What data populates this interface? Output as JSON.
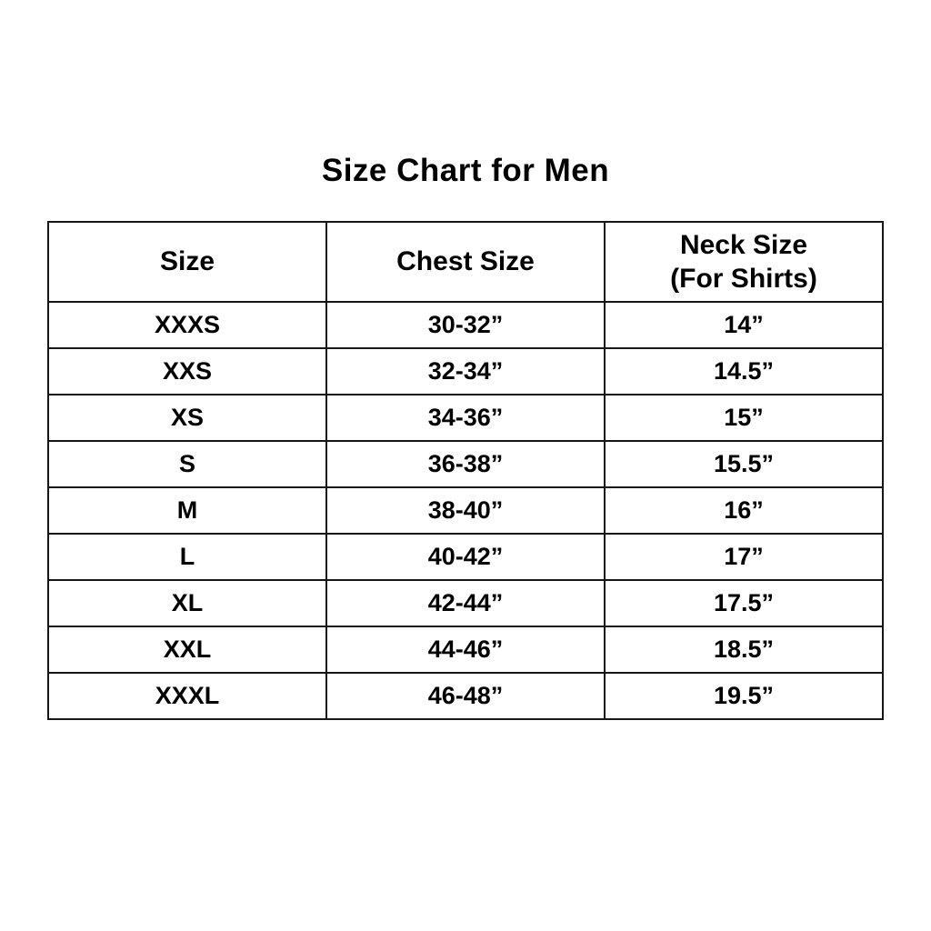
{
  "title": "Size Chart for Men",
  "chart_data": {
    "type": "table",
    "title": "Size Chart for Men",
    "columns": [
      {
        "label": "Size",
        "sublabel": ""
      },
      {
        "label": "Chest Size",
        "sublabel": ""
      },
      {
        "label": "Neck Size",
        "sublabel": "(For Shirts)"
      }
    ],
    "rows": [
      {
        "size": "XXXS",
        "chest": "30-32”",
        "neck": "14”"
      },
      {
        "size": "XXS",
        "chest": "32-34”",
        "neck": "14.5”"
      },
      {
        "size": "XS",
        "chest": "34-36”",
        "neck": "15”"
      },
      {
        "size": "S",
        "chest": "36-38”",
        "neck": "15.5”"
      },
      {
        "size": "M",
        "chest": "38-40”",
        "neck": "16”"
      },
      {
        "size": "L",
        "chest": "40-42”",
        "neck": "17”"
      },
      {
        "size": "XL",
        "chest": "42-44”",
        "neck": "17.5”"
      },
      {
        "size": "XXL",
        "chest": "44-46”",
        "neck": "18.5”"
      },
      {
        "size": "XXXL",
        "chest": "46-48”",
        "neck": "19.5”"
      }
    ],
    "layout": {
      "columns_equal_width": true,
      "header_rows": 1,
      "data_rows": 9,
      "text_align": "center",
      "all_text_bold": true
    },
    "colors": {
      "background": "#ffffff",
      "text": "#000000",
      "border": "#161616"
    }
  }
}
